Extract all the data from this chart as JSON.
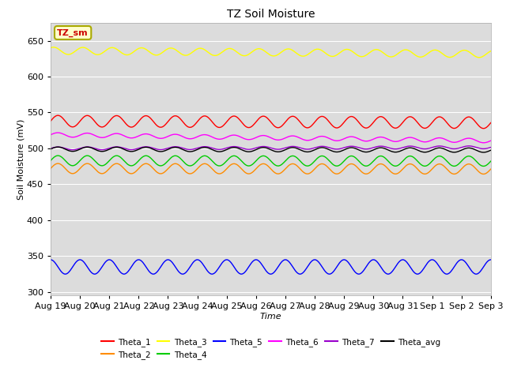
{
  "title": "TZ Soil Moisture",
  "xlabel": "Time",
  "ylabel": "Soil Moisture (mV)",
  "ylim": [
    295,
    675
  ],
  "yticks": [
    300,
    350,
    400,
    450,
    500,
    550,
    600,
    650
  ],
  "bg_color": "#dcdcdc",
  "fig_color": "#ffffff",
  "date_labels": [
    "Aug 19",
    "Aug 20",
    "Aug 21",
    "Aug 22",
    "Aug 23",
    "Aug 24",
    "Aug 25",
    "Aug 26",
    "Aug 27",
    "Aug 28",
    "Aug 29",
    "Aug 30",
    "Aug 31",
    "Sep 1",
    "Sep 2",
    "Sep 3"
  ],
  "series": [
    {
      "name": "Theta_1",
      "color": "#ff0000",
      "base": 538,
      "amplitude": 8,
      "freq": 1.0,
      "phase": 0.0,
      "trend": -0.15
    },
    {
      "name": "Theta_2",
      "color": "#ff8c00",
      "base": 472,
      "amplitude": 7,
      "freq": 1.0,
      "phase": 0.0,
      "trend": -0.05
    },
    {
      "name": "Theta_3",
      "color": "#ffff00",
      "base": 636,
      "amplitude": 5,
      "freq": 1.0,
      "phase": 0.3,
      "trend": -0.3
    },
    {
      "name": "Theta_4",
      "color": "#00cc00",
      "base": 483,
      "amplitude": 7,
      "freq": 1.0,
      "phase": 0.0,
      "trend": -0.05
    },
    {
      "name": "Theta_5",
      "color": "#0000ff",
      "base": 335,
      "amplitude": 10,
      "freq": 1.0,
      "phase": 0.5,
      "trend": 0.0
    },
    {
      "name": "Theta_6",
      "color": "#ff00ff",
      "base": 519,
      "amplitude": 3,
      "freq": 1.0,
      "phase": 0.0,
      "trend": -0.55
    },
    {
      "name": "Theta_7",
      "color": "#9900cc",
      "base": 500,
      "amplitude": 2,
      "freq": 1.0,
      "phase": 0.0,
      "trend": 0.1
    },
    {
      "name": "Theta_avg",
      "color": "#000000",
      "base": 499,
      "amplitude": 3,
      "freq": 1.0,
      "phase": 0.0,
      "trend": -0.1
    }
  ],
  "annotation_text": "TZ_sm",
  "annotation_bg": "#ffffcc",
  "annotation_fg": "#cc0000",
  "annotation_border": "#aaaa00"
}
